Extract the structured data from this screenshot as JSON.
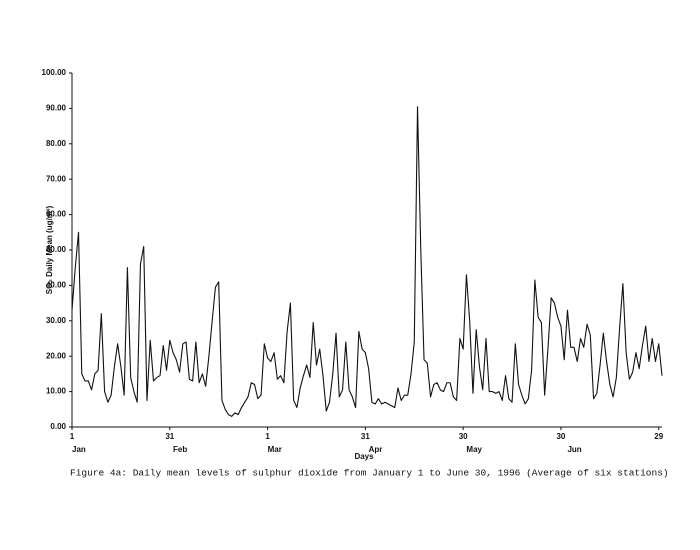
{
  "chart_data": {
    "type": "line",
    "y_label": "SO₂ Daily Mean (ug/m³)",
    "x_label": "Days",
    "caption": "Figure 4a: Daily mean levels of sulphur dioxide from January 1 to June 30, 1996 (Average of six stations)",
    "color": "#111111",
    "xlim": [
      1,
      182
    ],
    "ylim": [
      0,
      100
    ],
    "xticks": [
      1,
      31,
      {
        "value": 61,
        "label": "1"
      },
      {
        "value": 91,
        "label": "31"
      },
      {
        "value": 121,
        "label": "30"
      },
      {
        "value": 151,
        "label": "30"
      },
      {
        "value": 181,
        "label": "29"
      }
    ],
    "month_ticks": [
      {
        "value": 1,
        "label": "Jan"
      },
      {
        "value": 32,
        "label": "Feb"
      },
      {
        "value": 61,
        "label": "Mar"
      },
      {
        "value": 92,
        "label": "Apr"
      },
      {
        "value": 122,
        "label": "May"
      },
      {
        "value": 153,
        "label": "Jun"
      }
    ],
    "yticks": [
      {
        "value": 0,
        "label": "0.00"
      },
      {
        "value": 10,
        "label": "10.00"
      },
      {
        "value": 20,
        "label": "20.00"
      },
      {
        "value": 30,
        "label": "30.00"
      },
      {
        "value": 40,
        "label": "40.00"
      },
      {
        "value": 50,
        "label": "50.00"
      },
      {
        "value": 60,
        "label": "60.00"
      },
      {
        "value": 70,
        "label": "70.00"
      },
      {
        "value": 80,
        "label": "80.00"
      },
      {
        "value": 90,
        "label": "90.00"
      },
      {
        "value": 100,
        "label": "100.00"
      }
    ],
    "x": [
      1,
      2,
      3,
      4,
      5,
      6,
      7,
      8,
      9,
      10,
      11,
      12,
      13,
      14,
      15,
      16,
      17,
      18,
      19,
      20,
      21,
      22,
      23,
      24,
      25,
      26,
      27,
      28,
      29,
      30,
      31,
      32,
      33,
      34,
      35,
      36,
      37,
      38,
      39,
      40,
      41,
      42,
      43,
      44,
      45,
      46,
      47,
      48,
      49,
      50,
      51,
      52,
      53,
      54,
      55,
      56,
      57,
      58,
      59,
      60,
      61,
      62,
      63,
      64,
      65,
      66,
      67,
      68,
      69,
      70,
      71,
      72,
      73,
      74,
      75,
      76,
      77,
      78,
      79,
      80,
      81,
      82,
      83,
      84,
      85,
      86,
      87,
      88,
      89,
      90,
      91,
      92,
      93,
      94,
      95,
      96,
      97,
      98,
      99,
      100,
      101,
      102,
      103,
      104,
      105,
      106,
      107,
      108,
      109,
      110,
      111,
      112,
      113,
      114,
      115,
      116,
      117,
      118,
      119,
      120,
      121,
      122,
      123,
      124,
      125,
      126,
      127,
      128,
      129,
      130,
      131,
      132,
      133,
      134,
      135,
      136,
      137,
      138,
      139,
      140,
      141,
      142,
      143,
      144,
      145,
      146,
      147,
      148,
      149,
      150,
      151,
      152,
      153,
      154,
      155,
      156,
      157,
      158,
      159,
      160,
      161,
      162,
      163,
      164,
      165,
      166,
      167,
      168,
      169,
      170,
      171,
      172,
      173,
      174,
      175,
      176,
      177,
      178,
      179,
      180,
      181,
      182
    ],
    "values": [
      33,
      45,
      55,
      15,
      13,
      13,
      10.5,
      15,
      16,
      32,
      10,
      7,
      9,
      17,
      23.5,
      17,
      9,
      45,
      14,
      10,
      7,
      46,
      51,
      7.5,
      24.5,
      13,
      14,
      14.5,
      23,
      16,
      24.5,
      21,
      19,
      15.5,
      23.5,
      24,
      13.5,
      13,
      24,
      12.5,
      15,
      11.5,
      20,
      30,
      39.5,
      41,
      7.5,
      5,
      3.5,
      3,
      4,
      3.5,
      5.5,
      7,
      8.5,
      12.5,
      12,
      8,
      9,
      23.5,
      19.5,
      18.5,
      21,
      13.5,
      14.5,
      12.5,
      27,
      35,
      7.5,
      5.5,
      11,
      14.5,
      17.5,
      14,
      29.5,
      17.5,
      22,
      14.5,
      4.5,
      7,
      15,
      26.5,
      8.5,
      10.5,
      24,
      10.5,
      8.5,
      5.5,
      27,
      22,
      21,
      16.5,
      7,
      6.5,
      8,
      6.5,
      7,
      6.5,
      6,
      5.5,
      11,
      7.5,
      9,
      9,
      15,
      24,
      90.5,
      50,
      19,
      18,
      8.5,
      12,
      12.5,
      10.5,
      10,
      12.5,
      12.5,
      8.5,
      7.5,
      25,
      22,
      43,
      30,
      9.5,
      27.5,
      17,
      10.5,
      25,
      10,
      10,
      9.5,
      10,
      7.5,
      14.5,
      8,
      7,
      23.5,
      12,
      9,
      6.5,
      8,
      16,
      41.5,
      31,
      29.5,
      9,
      22,
      36.5,
      35,
      31,
      28.5,
      19,
      33,
      22.5,
      22.5,
      18.5,
      25,
      22.5,
      29,
      26,
      8,
      9.5,
      17.5,
      26.5,
      18.5,
      12,
      8.5,
      14,
      28,
      40.5,
      21,
      13.5,
      15.5,
      21,
      16.5,
      23,
      28.5,
      18.5,
      25,
      18.5,
      23.5,
      14.5
    ]
  }
}
